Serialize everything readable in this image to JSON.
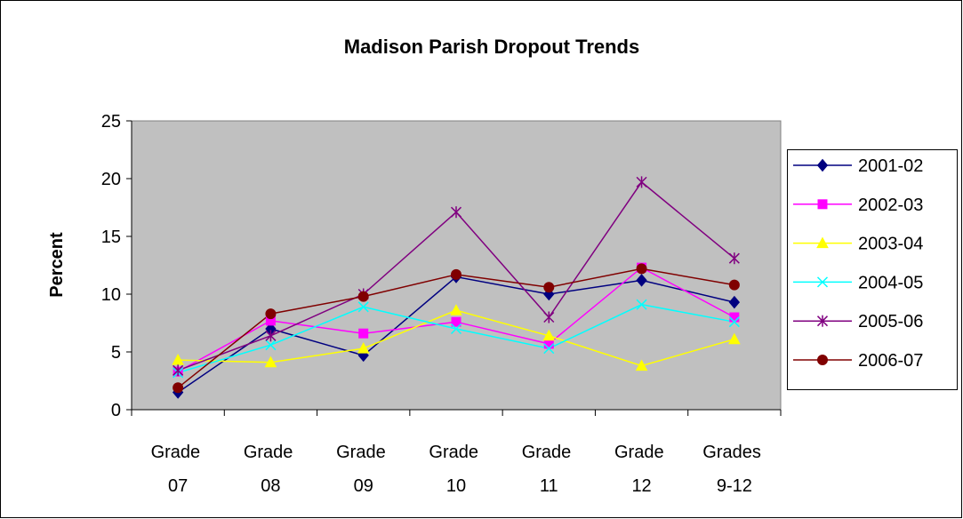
{
  "chart_data": {
    "type": "line",
    "title": "Madison Parish Dropout Trends",
    "y_label": "Percent",
    "categories": [
      "Grade 07",
      "Grade 08",
      "Grade 09",
      "Grade 10",
      "Grade 11",
      "Grade 12",
      "Grades 9-12"
    ],
    "ylim": [
      0,
      25
    ],
    "yticks": [
      0,
      5,
      10,
      15,
      20,
      25
    ],
    "grid": false,
    "legend": "right",
    "series": [
      {
        "name": "2001-02",
        "color": "#000080",
        "marker": "diamond",
        "values": [
          1.5,
          7.0,
          4.7,
          11.5,
          10.0,
          11.2,
          9.3
        ]
      },
      {
        "name": "2002-03",
        "color": "#ff00ff",
        "marker": "square",
        "values": [
          3.3,
          7.7,
          6.6,
          7.6,
          5.7,
          12.3,
          8.0
        ]
      },
      {
        "name": "2003-04",
        "color": "#ffff00",
        "marker": "triangle",
        "values": [
          4.3,
          4.1,
          5.3,
          8.6,
          6.4,
          3.8,
          6.1
        ]
      },
      {
        "name": "2004-05",
        "color": "#00ffff",
        "marker": "x",
        "values": [
          3.2,
          5.6,
          8.9,
          7.0,
          5.3,
          9.1,
          7.6
        ]
      },
      {
        "name": "2005-06",
        "color": "#800080",
        "marker": "star",
        "values": [
          3.4,
          6.4,
          10.0,
          17.1,
          8.0,
          19.7,
          13.1
        ]
      },
      {
        "name": "2006-07",
        "color": "#800000",
        "marker": "circle",
        "values": [
          1.9,
          8.3,
          9.8,
          11.7,
          10.6,
          12.2,
          10.8
        ]
      }
    ]
  }
}
